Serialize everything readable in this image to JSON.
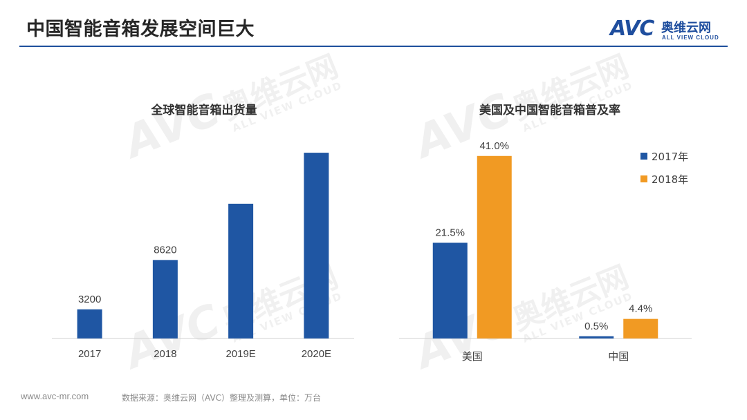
{
  "header": {
    "title": "中国智能音箱发展空间巨大",
    "brand_mark": "AVC",
    "brand_cn": "奥维云网",
    "brand_en": "ALL VIEW CLOUD"
  },
  "watermark": {
    "mark": "AVC",
    "cn": "奥维云网",
    "en": "ALL VIEW CLOUD"
  },
  "footer": {
    "site": "www.avc-mr.com",
    "source": "数据来源：奥维云网（AVC）整理及测算，单位：万台"
  },
  "chart_data": [
    {
      "type": "bar",
      "title": "全球智能音箱出货量",
      "categories": [
        "2017",
        "2018",
        "2019E",
        "2020E"
      ],
      "values": [
        3200,
        8620,
        14800,
        20400
      ],
      "data_labels": [
        "3200",
        "8620",
        "",
        ""
      ],
      "ylim": [
        0,
        22000
      ],
      "grid": false,
      "colors": [
        "#1f56a3"
      ]
    },
    {
      "type": "bar",
      "title": "美国及中国智能音箱普及率",
      "categories": [
        "美国",
        "中国"
      ],
      "series": [
        {
          "name": "2017年",
          "values": [
            21.5,
            0.5
          ],
          "labels": [
            "21.5%",
            "0.5%"
          ],
          "color": "#1f56a3"
        },
        {
          "name": "2018年",
          "values": [
            41.0,
            4.4
          ],
          "labels": [
            "41.0%",
            "4.4%"
          ],
          "color": "#f19a23"
        }
      ],
      "ylim": [
        0,
        45
      ],
      "legend": "top-right",
      "grid": false
    }
  ]
}
